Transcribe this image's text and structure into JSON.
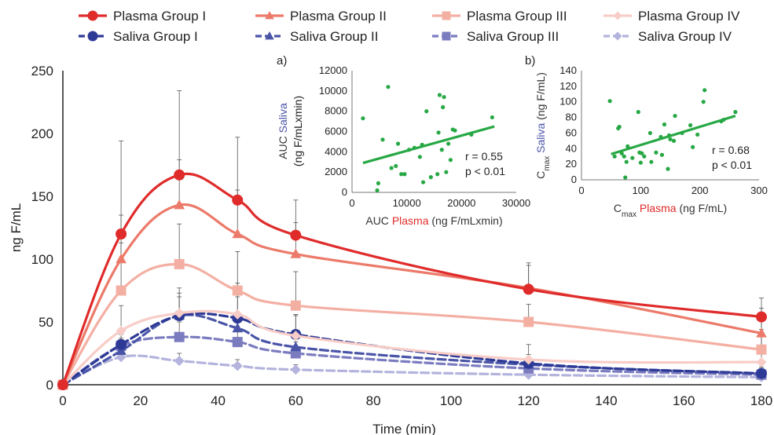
{
  "chart_data": [
    {
      "type": "line",
      "title": "",
      "xlabel": "Time (min)",
      "ylabel": "ng F/mL",
      "xlim": [
        0,
        180
      ],
      "ylim": [
        0,
        250
      ],
      "x_ticks": [
        "0",
        "20",
        "40",
        "60",
        "80",
        "100",
        "120",
        "140",
        "160",
        "180"
      ],
      "y_ticks": [
        "0",
        "50",
        "100",
        "150",
        "200",
        "250"
      ],
      "x": [
        0,
        15,
        30,
        45,
        60,
        120,
        180
      ],
      "legend_position": "top",
      "series": [
        {
          "name": "Plasma Group I",
          "color": "#e02b2b",
          "marker": "circle",
          "dash": false,
          "values": [
            0,
            120,
            167,
            147,
            119,
            76,
            54
          ],
          "errors": [
            0,
            74,
            67,
            50,
            28,
            21,
            15
          ]
        },
        {
          "name": "Plasma Group II",
          "color": "#ec7a6a",
          "marker": "triangle",
          "dash": false,
          "values": [
            0,
            100,
            143,
            120,
            104,
            77,
            41
          ],
          "errors": [
            0,
            35,
            36,
            35,
            25,
            18,
            20
          ]
        },
        {
          "name": "Plasma Group III",
          "color": "#f4afa3",
          "marker": "square",
          "dash": false,
          "values": [
            0,
            75,
            96,
            75,
            63,
            50,
            28
          ],
          "errors": [
            0,
            38,
            32,
            31,
            27,
            14,
            28
          ]
        },
        {
          "name": "Plasma Group IV",
          "color": "#f8cdc7",
          "marker": "diamond",
          "dash": false,
          "values": [
            0,
            43,
            57,
            56,
            39,
            20,
            18
          ],
          "errors": [
            0,
            20,
            20,
            25,
            17,
            12,
            26
          ]
        },
        {
          "name": "Saliva Group I",
          "color": "#2d3a96",
          "marker": "circle",
          "dash": true,
          "values": [
            0,
            32,
            55,
            53,
            40,
            17,
            9
          ],
          "errors": [
            0,
            12,
            18,
            17,
            15,
            7,
            5
          ]
        },
        {
          "name": "Saliva Group II",
          "color": "#4a55a8",
          "marker": "triangle",
          "dash": true,
          "values": [
            0,
            27,
            55,
            45,
            30,
            16,
            9
          ],
          "errors": [
            0,
            10,
            15,
            13,
            12,
            6,
            5
          ]
        },
        {
          "name": "Saliva Group III",
          "color": "#7b7cc0",
          "marker": "square",
          "dash": true,
          "values": [
            0,
            31,
            38,
            34,
            25,
            13,
            8
          ],
          "errors": [
            0,
            9,
            12,
            11,
            9,
            5,
            4
          ]
        },
        {
          "name": "Saliva Group IV",
          "color": "#b3b3dd",
          "marker": "diamond",
          "dash": true,
          "values": [
            0,
            22,
            19,
            15,
            12,
            8,
            6
          ],
          "errors": [
            0,
            6,
            6,
            5,
            4,
            3,
            2
          ]
        }
      ]
    },
    {
      "type": "scatter",
      "panel_label": "a)",
      "xlabel_parts": [
        {
          "text": "AUC ",
          "color": "#333333"
        },
        {
          "text": "Plasma",
          "color": "#e02b2b"
        },
        {
          "text": " (ng F/mLxmin)",
          "color": "#333333"
        }
      ],
      "ylabel_line1_parts": [
        {
          "text": "AUC ",
          "color": "#333333"
        },
        {
          "text": "Saliva",
          "color": "#4a55a8"
        }
      ],
      "ylabel_line2": "(ng F/mLxmin)",
      "xlim": [
        0,
        30000
      ],
      "ylim": [
        0,
        12000
      ],
      "x_ticks": [
        "0",
        "10000",
        "20000",
        "30000"
      ],
      "y_ticks": [
        "0",
        "2000",
        "4000",
        "6000",
        "8000",
        "10000",
        "12000"
      ],
      "annotations": [
        "r = 0.55",
        "p < 0.01"
      ],
      "trend": {
        "x": [
          2000,
          26000
        ],
        "y": [
          2900,
          6500
        ]
      },
      "points": [
        [
          2000,
          7300
        ],
        [
          4600,
          200
        ],
        [
          4800,
          900
        ],
        [
          5600,
          5200
        ],
        [
          6600,
          10400
        ],
        [
          7200,
          2400
        ],
        [
          8000,
          2600
        ],
        [
          8400,
          4800
        ],
        [
          9000,
          1800
        ],
        [
          9600,
          1800
        ],
        [
          10400,
          4200
        ],
        [
          11400,
          4400
        ],
        [
          12400,
          3500
        ],
        [
          12800,
          4700
        ],
        [
          13000,
          1000
        ],
        [
          13600,
          8000
        ],
        [
          14400,
          1500
        ],
        [
          15600,
          1800
        ],
        [
          16000,
          9600
        ],
        [
          16400,
          4200
        ],
        [
          16600,
          8400
        ],
        [
          16800,
          9400
        ],
        [
          17200,
          2000
        ],
        [
          17600,
          4800
        ],
        [
          18000,
          3200
        ],
        [
          18400,
          6200
        ],
        [
          18800,
          6100
        ],
        [
          21800,
          5700
        ],
        [
          25600,
          7400
        ],
        [
          15800,
          5900
        ]
      ]
    },
    {
      "type": "scatter",
      "panel_label": "b)",
      "xlabel_parts": [
        {
          "text": "C",
          "color": "#333333"
        },
        {
          "text": "max",
          "color": "#333333",
          "sub": true
        },
        {
          "text": " Plasma",
          "color": "#e02b2b"
        },
        {
          "text": " (ng F/mL)",
          "color": "#333333"
        }
      ],
      "ylabel_parts": [
        {
          "text": "C",
          "color": "#333333"
        },
        {
          "text": "max",
          "color": "#333333",
          "sub": true
        },
        {
          "text": " Saliva",
          "color": "#4a55a8"
        },
        {
          "text": " (ng F/mL)",
          "color": "#333333"
        }
      ],
      "xlim": [
        0,
        300
      ],
      "ylim": [
        0,
        140
      ],
      "x_ticks": [
        "0",
        "100",
        "200",
        "300"
      ],
      "y_ticks": [
        "0",
        "20",
        "40",
        "60",
        "80",
        "100",
        "120",
        "140"
      ],
      "annotations": [
        "r = 0.68",
        "p < 0.01"
      ],
      "trend": {
        "x": [
          50,
          260
        ],
        "y": [
          33,
          82
        ]
      },
      "points": [
        [
          48,
          101
        ],
        [
          56,
          30
        ],
        [
          62,
          66
        ],
        [
          64,
          68
        ],
        [
          68,
          34
        ],
        [
          72,
          30
        ],
        [
          74,
          3
        ],
        [
          76,
          23
        ],
        [
          78,
          43
        ],
        [
          86,
          28
        ],
        [
          96,
          87
        ],
        [
          98,
          35
        ],
        [
          100,
          22
        ],
        [
          102,
          34
        ],
        [
          106,
          30
        ],
        [
          116,
          60
        ],
        [
          118,
          23
        ],
        [
          126,
          35
        ],
        [
          134,
          55
        ],
        [
          136,
          32
        ],
        [
          140,
          71
        ],
        [
          146,
          14
        ],
        [
          148,
          57
        ],
        [
          150,
          52
        ],
        [
          156,
          50
        ],
        [
          158,
          82
        ],
        [
          170,
          60
        ],
        [
          184,
          70
        ],
        [
          188,
          42
        ],
        [
          196,
          58
        ],
        [
          206,
          100
        ],
        [
          208,
          115
        ],
        [
          260,
          87
        ],
        [
          240,
          77
        ],
        [
          236,
          75
        ]
      ]
    }
  ]
}
